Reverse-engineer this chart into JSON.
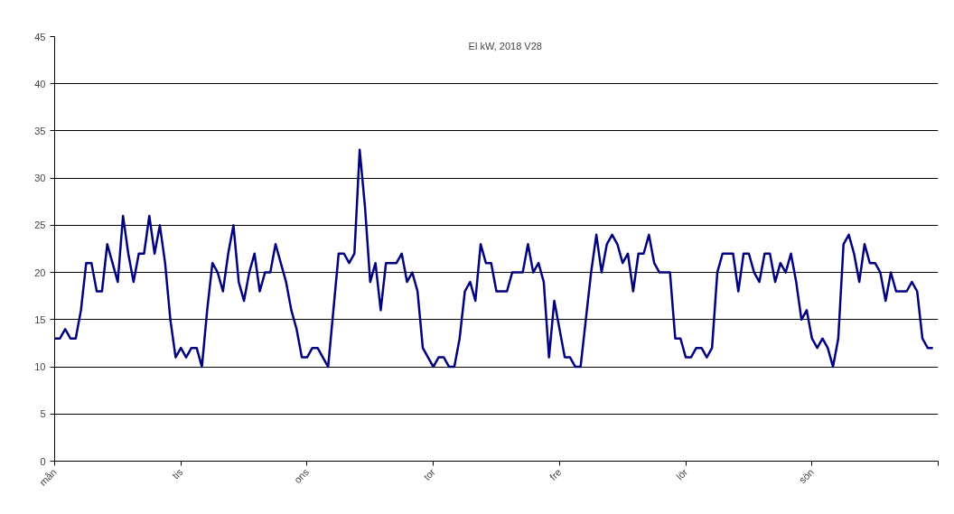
{
  "chart_data": {
    "type": "line",
    "title": "El kW, 2018 V28",
    "categories": [
      "mån",
      null,
      null,
      null,
      null,
      null,
      null,
      null,
      null,
      null,
      null,
      null,
      null,
      null,
      null,
      null,
      null,
      null,
      null,
      null,
      null,
      null,
      null,
      null,
      "tis",
      null,
      null,
      null,
      null,
      null,
      null,
      null,
      null,
      null,
      null,
      null,
      null,
      null,
      null,
      null,
      null,
      null,
      null,
      null,
      null,
      null,
      null,
      null,
      "ons",
      null,
      null,
      null,
      null,
      null,
      null,
      null,
      null,
      null,
      null,
      null,
      null,
      null,
      null,
      null,
      null,
      null,
      null,
      null,
      null,
      null,
      null,
      null,
      "tor",
      null,
      null,
      null,
      null,
      null,
      null,
      null,
      null,
      null,
      null,
      null,
      null,
      null,
      null,
      null,
      null,
      null,
      null,
      null,
      null,
      null,
      null,
      null,
      "fre",
      null,
      null,
      null,
      null,
      null,
      null,
      null,
      null,
      null,
      null,
      null,
      null,
      null,
      null,
      null,
      null,
      null,
      null,
      null,
      null,
      null,
      null,
      null,
      "lör",
      null,
      null,
      null,
      null,
      null,
      null,
      null,
      null,
      null,
      null,
      null,
      null,
      null,
      null,
      null,
      null,
      null,
      null,
      null,
      null,
      null,
      null,
      null,
      "sön",
      null,
      null,
      null,
      null,
      null,
      null,
      null,
      null,
      null,
      null,
      null,
      null,
      null,
      null,
      null,
      null,
      null,
      null,
      null,
      null,
      null,
      null,
      null
    ],
    "series": [
      {
        "color": "#000080",
        "values": [
          13,
          13,
          14,
          13,
          13,
          16,
          21,
          21,
          18,
          18,
          23,
          21,
          19,
          26,
          22,
          19,
          22,
          22,
          26,
          22,
          25,
          21,
          15,
          11,
          12,
          11,
          12,
          12,
          10,
          16,
          21,
          20,
          18,
          22,
          25,
          19,
          17,
          20,
          22,
          18,
          20,
          20,
          23,
          21,
          19,
          16,
          14,
          11,
          11,
          12,
          12,
          11,
          10,
          16,
          22,
          22,
          21,
          22,
          33,
          27,
          19,
          21,
          16,
          21,
          21,
          21,
          22,
          19,
          20,
          18,
          12,
          11,
          10,
          11,
          11,
          10,
          10,
          13,
          18,
          19,
          17,
          23,
          21,
          21,
          18,
          18,
          18,
          20,
          20,
          20,
          23,
          20,
          21,
          19,
          11,
          17,
          14,
          11,
          11,
          10,
          10,
          15,
          20,
          24,
          20,
          23,
          24,
          23,
          21,
          22,
          18,
          22,
          22,
          24,
          21,
          20,
          20,
          20,
          13,
          13,
          11,
          11,
          12,
          12,
          11,
          12,
          20,
          22,
          22,
          22,
          18,
          22,
          22,
          20,
          19,
          22,
          22,
          19,
          21,
          20,
          22,
          19,
          15,
          16,
          13,
          12,
          13,
          12,
          10,
          13,
          23,
          24,
          22,
          19,
          23,
          21,
          21,
          20,
          17,
          20,
          18,
          18,
          18,
          19,
          18,
          13,
          12,
          12
        ]
      }
    ],
    "ylim": [
      0,
      45
    ],
    "yticks": [
      0,
      5,
      10,
      15,
      20,
      25,
      30,
      35,
      40,
      45
    ],
    "grid": "y",
    "marker": "none",
    "line_style": "solid"
  }
}
